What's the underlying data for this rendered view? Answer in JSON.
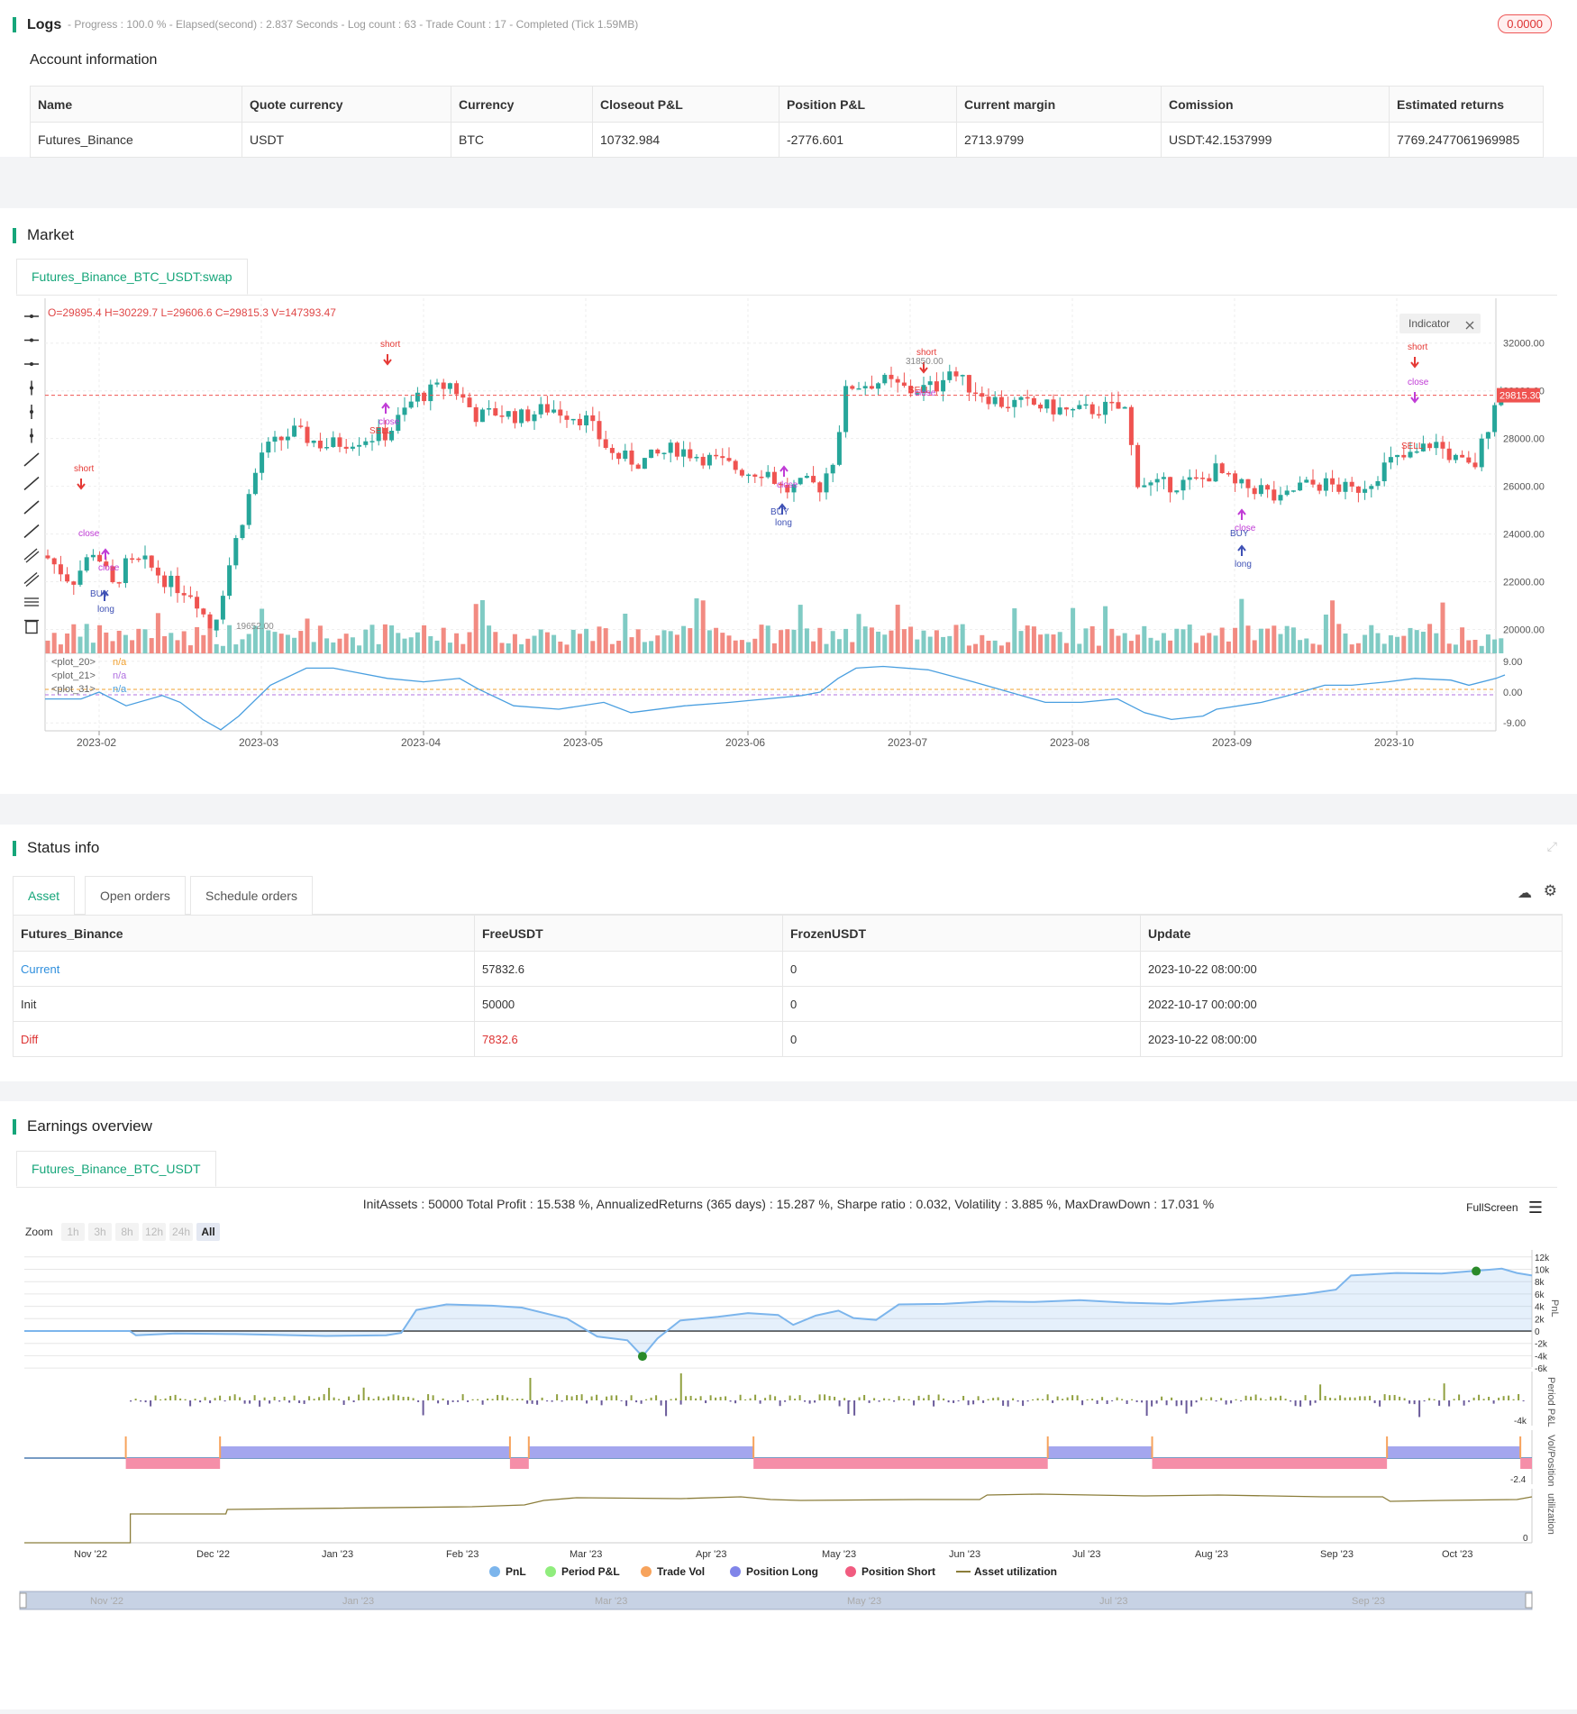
{
  "logs": {
    "title": "Logs",
    "progress_text": "- Progress : 100.0 % - Elapsed(second) : 2.837  Seconds - Log count : 63 - Trade Count : 17 - Completed (Tick 1.59MB)",
    "badge": "0.0000"
  },
  "account": {
    "title": "Account information",
    "headers": [
      "Name",
      "Quote currency",
      "Currency",
      "Closeout P&L",
      "Position P&L",
      "Current margin",
      "Comission",
      "Estimated returns"
    ],
    "row": [
      "Futures_Binance",
      "USDT",
      "BTC",
      "10732.984",
      "-2776.601",
      "2713.9799",
      "USDT:42.1537999",
      "7769.2477061969985"
    ]
  },
  "market": {
    "title": "Market",
    "tab": "Futures_Binance_BTC_USDT:swap",
    "ohlc": "O=29895.4 H=30229.7 L=29606.6 C=29815.3 V=147393.47",
    "indicator_btn": "Indicator",
    "last_price": "29815.30",
    "y_ticks": [
      "32000.00",
      "30000.00",
      "28000.00",
      "26000.00",
      "24000.00",
      "22000.00",
      "20000.00"
    ],
    "osc_ticks": [
      "9.00",
      "0.00",
      "-9.00"
    ],
    "x_ticks": [
      "2023-02",
      "2023-03",
      "2023-04",
      "2023-05",
      "2023-06",
      "2023-07",
      "2023-08",
      "2023-09",
      "2023-10"
    ],
    "plots": [
      {
        "name": "<plot_20>",
        "val": "n/a"
      },
      {
        "name": "<plot_21>",
        "val": "n/a"
      },
      {
        "name": "<plot_31>",
        "val": "n/a"
      }
    ],
    "annotations": {
      "short": "short",
      "long": "long",
      "close": "close",
      "buy": "BUY",
      "sell": "SELL",
      "one": "1",
      "high": "31850.00",
      "low": "19652.00"
    }
  },
  "status": {
    "title": "Status info",
    "tabs": [
      "Asset",
      "Open orders",
      "Schedule orders"
    ],
    "headers": [
      "Futures_Binance",
      "FreeUSDT",
      "FrozenUSDT",
      "Update"
    ],
    "rows": [
      [
        "Current",
        "57832.6",
        "0",
        "2023-10-22 08:00:00"
      ],
      [
        "Init",
        "50000",
        "0",
        "2022-10-17 00:00:00"
      ],
      [
        "Diff",
        "7832.6",
        "0",
        "2023-10-22 08:00:00"
      ]
    ],
    "colors": {
      "current": "#2f8fdd",
      "diff": "#d33"
    }
  },
  "earnings": {
    "title": "Earnings overview",
    "tab": "Futures_Binance_BTC_USDT",
    "summary": "InitAssets : 50000 Total Profit : 15.538 %, AnnualizedReturns (365 days) : 15.287 %, Sharpe ratio : 0.032, Volatility : 3.885 %, MaxDrawDown : 17.031 %",
    "fullscreen": "FullScreen",
    "zoom_label": "Zoom",
    "zoom_buttons": [
      "1h",
      "3h",
      "8h",
      "12h",
      "24h",
      "All"
    ],
    "pnl_ticks": [
      "12k",
      "10k",
      "8k",
      "6k",
      "4k",
      "2k",
      "0",
      "-2k",
      "-4k",
      "-6k"
    ],
    "period_tick": "-4k",
    "vol_tick": "-2.4",
    "util_tick": "0",
    "axis_titles": [
      "PnL",
      "Period P&L",
      "Vol/Position",
      "utilization"
    ],
    "x_ticks": [
      "Nov '22",
      "Dec '22",
      "Jan '23",
      "Feb '23",
      "Mar '23",
      "Apr '23",
      "May '23",
      "Jun '23",
      "Jul '23",
      "Aug '23",
      "Sep '23",
      "Oct '23"
    ],
    "nav_ticks": [
      "Nov '22",
      "Jan '23",
      "Mar '23",
      "May '23",
      "Jul '23",
      "Sep '23"
    ],
    "legend": [
      {
        "label": "PnL",
        "color": "#7cb5ec"
      },
      {
        "label": "Period P&L",
        "color": "#90ed7d"
      },
      {
        "label": "Trade Vol",
        "color": "#f7a35c"
      },
      {
        "label": "Position Long",
        "color": "#8085e9"
      },
      {
        "label": "Position Short",
        "color": "#f15c80"
      },
      {
        "label": "Asset utilization",
        "color": "#8b7d3a"
      }
    ]
  }
}
